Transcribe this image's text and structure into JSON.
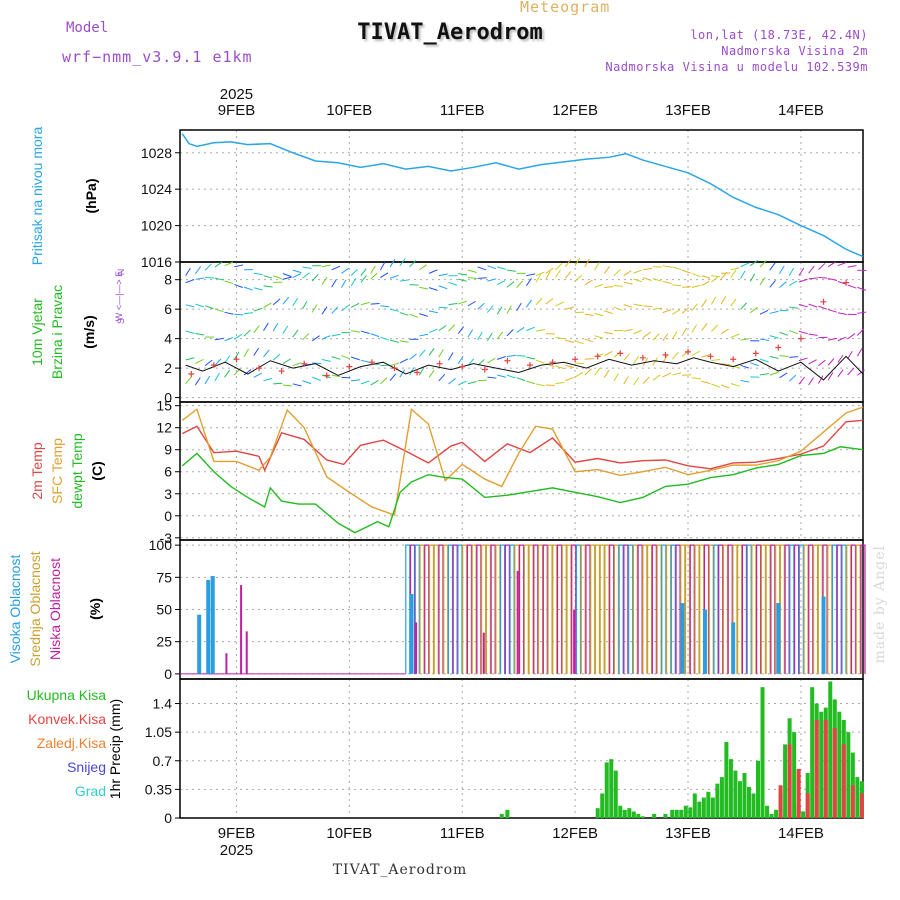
{
  "header": {
    "title": "TIVAT_Aerodrom",
    "subtitle": "Meteogram",
    "model_label": "Model",
    "model_value": "wrf−nmm_v3.9.1 e1km",
    "info_lines": [
      "lon,lat (18.73E, 42.4N)",
      "Nadmorska Visina 2m",
      "Nadmorska Visina u modelu 102.539m"
    ],
    "footer": "TIVAT_Aerodrom",
    "watermark": "made by Angel"
  },
  "colors": {
    "pressure": "#2aa6e6",
    "temp2m": "#e24444",
    "sfc": "#e0a030",
    "dewpt": "#22bb22",
    "high_cloud": "#2a9ee0",
    "mid_cloud": "#c9a030",
    "low_cloud": "#c020a0",
    "precip": "#22bb22",
    "convective": "#e24444",
    "freezing": "#f08030",
    "snow": "#4444dd",
    "hail": "#33cccc",
    "axis_text": "#111111",
    "grid": "#aaaaaa"
  },
  "chart_data": [
    {
      "type": "line",
      "ylabel": "Pritisak na nivou mora",
      "unit": "(hPa)",
      "x_unit": "day offset from 2025-02-09 00:00",
      "x_ticks": [
        "9FEB",
        "10FEB",
        "11FEB",
        "12FEB",
        "13FEB",
        "14FEB"
      ],
      "year": "2025",
      "xlim": [
        -0.5,
        5.55
      ],
      "ylim": [
        1016,
        1030.5
      ],
      "yticks": [
        1016,
        1020,
        1024,
        1028
      ],
      "grid": true,
      "series": [
        {
          "color": "#2aa6e6",
          "x": [
            -0.48,
            -0.42,
            -0.35,
            -0.2,
            -0.05,
            0.1,
            0.3,
            0.5,
            0.7,
            0.9,
            1.1,
            1.3,
            1.5,
            1.7,
            1.9,
            2.1,
            2.3,
            2.5,
            2.7,
            2.9,
            3.1,
            3.3,
            3.45,
            3.6,
            3.8,
            4.0,
            4.2,
            4.4,
            4.6,
            4.8,
            5.0,
            5.2,
            5.4,
            5.55
          ],
          "y": [
            1030.1,
            1029.0,
            1028.7,
            1029.1,
            1029.2,
            1028.9,
            1029.0,
            1028.0,
            1027.1,
            1026.9,
            1026.4,
            1026.8,
            1026.2,
            1026.5,
            1026.0,
            1026.4,
            1026.9,
            1026.2,
            1026.7,
            1027.0,
            1027.3,
            1027.5,
            1027.9,
            1027.2,
            1026.5,
            1025.8,
            1024.6,
            1023.1,
            1022.0,
            1021.2,
            1020.0,
            1018.9,
            1017.4,
            1016.6
          ]
        }
      ]
    },
    {
      "type": "scatter",
      "ylabel": "10m Vjetar",
      "ylabel2": "Brzina i Pravac",
      "unit": "(m/s)",
      "compass": "N",
      "compass_label": "W <—|—> E",
      "compass_s": "S",
      "ylim": [
        -0.3,
        9.2
      ],
      "yticks": [
        0,
        2,
        4,
        6,
        8
      ],
      "grid": true,
      "series": [
        {
          "name": "wind speed",
          "color": "#111111",
          "x": [
            -0.45,
            -0.3,
            -0.1,
            0.1,
            0.3,
            0.5,
            0.7,
            0.9,
            1.1,
            1.3,
            1.5,
            1.7,
            1.9,
            2.1,
            2.3,
            2.5,
            2.7,
            2.9,
            3.1,
            3.3,
            3.5,
            3.7,
            3.9,
            4.05,
            4.2,
            4.4,
            4.6,
            4.8,
            5.0,
            5.2,
            5.4,
            5.55
          ],
          "y": [
            2.2,
            1.8,
            2.4,
            1.6,
            2.5,
            2.0,
            2.3,
            1.5,
            2.1,
            2.4,
            1.6,
            2.2,
            1.9,
            2.3,
            2.0,
            1.7,
            2.2,
            2.4,
            2.0,
            2.6,
            2.2,
            2.5,
            2.3,
            2.7,
            2.4,
            2.1,
            2.6,
            1.8,
            2.4,
            1.2,
            2.8,
            1.6
          ]
        },
        {
          "name": "gust",
          "color": "#e24444",
          "x": [
            -0.4,
            -0.2,
            0.0,
            0.2,
            0.4,
            0.6,
            0.8,
            1.0,
            1.2,
            1.4,
            1.6,
            1.8,
            2.0,
            2.2,
            2.4,
            2.6,
            2.8,
            3.0,
            3.2,
            3.4,
            3.6,
            3.8,
            4.0,
            4.2,
            4.4,
            4.6,
            4.8,
            5.0,
            5.2,
            5.4
          ],
          "y": [
            1.6,
            2.2,
            2.6,
            2.0,
            1.8,
            2.3,
            1.5,
            2.1,
            2.4,
            2.0,
            1.7,
            2.3,
            2.1,
            1.9,
            2.5,
            2.2,
            2.4,
            2.6,
            2.8,
            3.0,
            2.7,
            2.9,
            3.1,
            2.8,
            2.6,
            3.0,
            3.4,
            4.0,
            6.5,
            7.8
          ]
        }
      ]
    },
    {
      "type": "line",
      "ylabel": "2m Temp",
      "ylabel2": "SFC Temp",
      "ylabel3": "dewpt Temp",
      "unit": "(C)",
      "ylim": [
        -3.3,
        15.5
      ],
      "yticks": [
        -3,
        0,
        3,
        6,
        9,
        12,
        15
      ],
      "grid": true,
      "series": [
        {
          "name": "2m Temp",
          "color": "#e24444",
          "x": [
            -0.48,
            -0.35,
            -0.2,
            0.0,
            0.2,
            0.25,
            0.4,
            0.6,
            0.8,
            0.95,
            1.1,
            1.3,
            1.5,
            1.7,
            1.9,
            2.0,
            2.2,
            2.4,
            2.6,
            2.8,
            3.0,
            3.2,
            3.4,
            3.6,
            3.8,
            4.0,
            4.2,
            4.4,
            4.6,
            4.8,
            5.0,
            5.2,
            5.4,
            5.55
          ],
          "y": [
            11.2,
            12.2,
            8.6,
            8.8,
            8.1,
            6.2,
            11.3,
            10.4,
            7.6,
            7.0,
            9.6,
            10.3,
            8.8,
            7.2,
            9.5,
            10.0,
            7.4,
            9.8,
            8.6,
            10.6,
            7.3,
            7.8,
            7.2,
            7.5,
            7.6,
            6.8,
            6.4,
            7.2,
            7.3,
            7.8,
            8.4,
            9.5,
            12.8,
            13.0
          ]
        },
        {
          "name": "SFC Temp",
          "color": "#e0a030",
          "x": [
            -0.48,
            -0.35,
            -0.2,
            0.0,
            0.2,
            0.3,
            0.45,
            0.6,
            0.8,
            1.0,
            1.2,
            1.4,
            1.55,
            1.7,
            1.85,
            2.0,
            2.2,
            2.35,
            2.5,
            2.65,
            2.8,
            3.0,
            3.2,
            3.4,
            3.6,
            3.8,
            4.0,
            4.2,
            4.4,
            4.6,
            4.8,
            5.0,
            5.2,
            5.4,
            5.55
          ],
          "y": [
            13.0,
            14.5,
            7.4,
            7.4,
            6.2,
            8.0,
            14.4,
            12.0,
            5.3,
            3.2,
            1.2,
            0.1,
            14.5,
            12.5,
            4.8,
            7.0,
            5.0,
            4.0,
            8.5,
            12.2,
            11.8,
            6.0,
            6.3,
            5.5,
            6.0,
            6.6,
            5.6,
            6.2,
            6.9,
            6.9,
            7.5,
            8.8,
            11.4,
            14.0,
            14.8
          ]
        },
        {
          "name": "dewpt Temp",
          "color": "#22bb22",
          "x": [
            -0.48,
            -0.35,
            -0.2,
            -0.05,
            0.1,
            0.25,
            0.3,
            0.4,
            0.55,
            0.7,
            0.9,
            1.05,
            1.25,
            1.35,
            1.45,
            1.55,
            1.7,
            1.85,
            2.0,
            2.2,
            2.4,
            2.6,
            2.8,
            3.0,
            3.2,
            3.4,
            3.6,
            3.8,
            4.0,
            4.2,
            4.4,
            4.6,
            4.8,
            5.0,
            5.2,
            5.35,
            5.55
          ],
          "y": [
            6.8,
            8.5,
            6.0,
            4.0,
            2.5,
            1.2,
            3.8,
            2.0,
            1.6,
            1.6,
            -1.0,
            -2.3,
            -0.8,
            -1.5,
            3.2,
            4.6,
            5.6,
            5.2,
            5.0,
            2.5,
            2.8,
            3.3,
            3.8,
            3.2,
            2.6,
            1.8,
            2.5,
            4.0,
            4.3,
            5.2,
            5.6,
            6.5,
            7.0,
            8.2,
            8.5,
            9.4,
            9.0
          ]
        }
      ]
    },
    {
      "type": "bar",
      "ylabel": "Visoka Oblacnost",
      "ylabel2": "Srednja Oblacnost",
      "ylabel3": "Niska Oblacnost",
      "unit": "(%)",
      "ylim": [
        -4,
        104
      ],
      "yticks": [
        0,
        25,
        50,
        75,
        100
      ],
      "grid": true,
      "series": [
        {
          "name": "Visoka Oblacnost",
          "color": "#2a9ee0",
          "x": [
            -0.33,
            -0.25,
            -0.21,
            1.55,
            3.95,
            4.15,
            4.4,
            4.8,
            5.2
          ],
          "values": [
            46,
            73,
            76,
            62,
            55,
            50,
            40,
            55,
            60
          ]
        },
        {
          "name": "Niska Oblacnost",
          "color": "#c020a0",
          "x": [
            -0.08,
            0.05,
            0.1,
            1.6,
            2.2,
            2.5,
            3.0
          ],
          "values": [
            16,
            69,
            33,
            40,
            32,
            80,
            50
          ]
        }
      ],
      "mid_band": {
        "name": "Srednja Oblacnost",
        "color": "#c9a030",
        "from": 1.5,
        "to": 5.55,
        "value": 100
      }
    },
    {
      "type": "bar",
      "ylabel": "1hr Precip",
      "unit": "(mm)",
      "legend": [
        "Ukupna Kisa",
        "Konvek.Kisa",
        "Zaledj.Kisa",
        "Snijeg",
        "Grad"
      ],
      "ylim": [
        0,
        1.7
      ],
      "yticks": [
        0,
        0.35,
        0.7,
        1.05,
        1.4
      ],
      "ytick_labels": [
        "0",
        "0.35",
        "0.7",
        "1.05",
        "1.4"
      ],
      "grid": true,
      "series": [
        {
          "name": "Ukupna Kisa",
          "color": "#22bb22",
          "x": [
            2.35,
            2.4,
            3.2,
            3.24,
            3.28,
            3.32,
            3.36,
            3.4,
            3.44,
            3.48,
            3.52,
            3.56,
            3.6,
            3.7,
            3.8,
            3.86,
            3.9,
            3.94,
            3.98,
            4.02,
            4.06,
            4.1,
            4.14,
            4.18,
            4.22,
            4.26,
            4.3,
            4.34,
            4.38,
            4.42,
            4.46,
            4.5,
            4.54,
            4.58,
            4.62,
            4.66,
            4.7,
            4.74,
            4.78,
            4.82,
            4.86,
            4.9,
            4.94,
            4.98,
            5.02,
            5.06,
            5.1,
            5.14,
            5.18,
            5.22,
            5.26,
            5.3,
            5.34,
            5.38,
            5.42,
            5.46,
            5.5,
            5.54
          ],
          "values": [
            0.05,
            0.1,
            0.12,
            0.3,
            0.68,
            0.72,
            0.58,
            0.15,
            0.1,
            0.12,
            0.08,
            0.05,
            0.02,
            0.05,
            0.05,
            0.1,
            0.1,
            0.1,
            0.15,
            0.13,
            0.3,
            0.2,
            0.25,
            0.32,
            0.25,
            0.42,
            0.5,
            0.93,
            0.72,
            0.58,
            0.45,
            0.55,
            0.38,
            0.3,
            0.7,
            1.6,
            0.15,
            0.05,
            0.1,
            0.3,
            0.9,
            1.22,
            1.05,
            0.15,
            0.08,
            0.55,
            1.6,
            1.4,
            1.3,
            1.35,
            1.67,
            1.45,
            1.3,
            1.2,
            1.05,
            0.8,
            0.5,
            0.45
          ]
        },
        {
          "name": "Konvek.Kisa",
          "color": "#e24444",
          "x": [
            4.82,
            4.9,
            4.98,
            5.06,
            5.14,
            5.22,
            5.3,
            5.38,
            5.46,
            5.54
          ],
          "values": [
            0.4,
            0.9,
            0.6,
            0.3,
            1.2,
            1.2,
            1.1,
            0.9,
            0.4,
            0.3
          ]
        }
      ]
    }
  ]
}
